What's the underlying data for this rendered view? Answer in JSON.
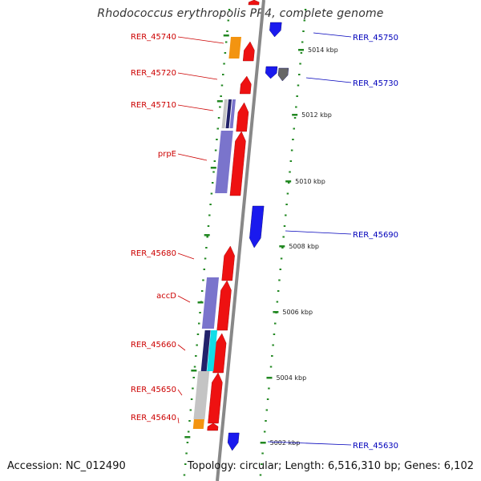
{
  "header": {
    "title": "Rhodococcus erythropolis PR4, complete genome"
  },
  "footer": {
    "accession": "Accession: NC_012490",
    "summary": "Topology: circular; Length: 6,516,310 bp; Genes: 6,102"
  },
  "colors": {
    "forward_gene": "#ee1111",
    "reverse_gene": "#1a1aee",
    "label_left": "#cc0000",
    "label_right": "#0000bb",
    "backbone": "#888888",
    "tick_dots": "#228822",
    "cog_purple": "#7a74cc",
    "cog_orange": "#f39410",
    "cog_navy": "#22226a",
    "cog_cyan": "#11dde8",
    "cog_gray": "#c4c4c4"
  },
  "ticks": [
    {
      "label": "5014 kbp"
    },
    {
      "label": "5012 kbp"
    },
    {
      "label": "5010 kbp"
    },
    {
      "label": "5008 kbp"
    },
    {
      "label": "5006 kbp"
    },
    {
      "label": "5004 kbp"
    },
    {
      "label": "5002 kbp"
    }
  ],
  "gene_labels": [
    {
      "text": "RER_45740",
      "side": "left"
    },
    {
      "text": "RER_45720",
      "side": "left"
    },
    {
      "text": "RER_45710",
      "side": "left"
    },
    {
      "text": "prpE",
      "side": "left"
    },
    {
      "text": "RER_45680",
      "side": "left"
    },
    {
      "text": "accD",
      "side": "left"
    },
    {
      "text": "RER_45660",
      "side": "left"
    },
    {
      "text": "RER_45650",
      "side": "left"
    },
    {
      "text": "RER_45640",
      "side": "left"
    },
    {
      "text": "RER_45750",
      "side": "right"
    },
    {
      "text": "RER_45730",
      "side": "right"
    },
    {
      "text": "RER_45690",
      "side": "right"
    },
    {
      "text": "RER_45630",
      "side": "right"
    }
  ]
}
